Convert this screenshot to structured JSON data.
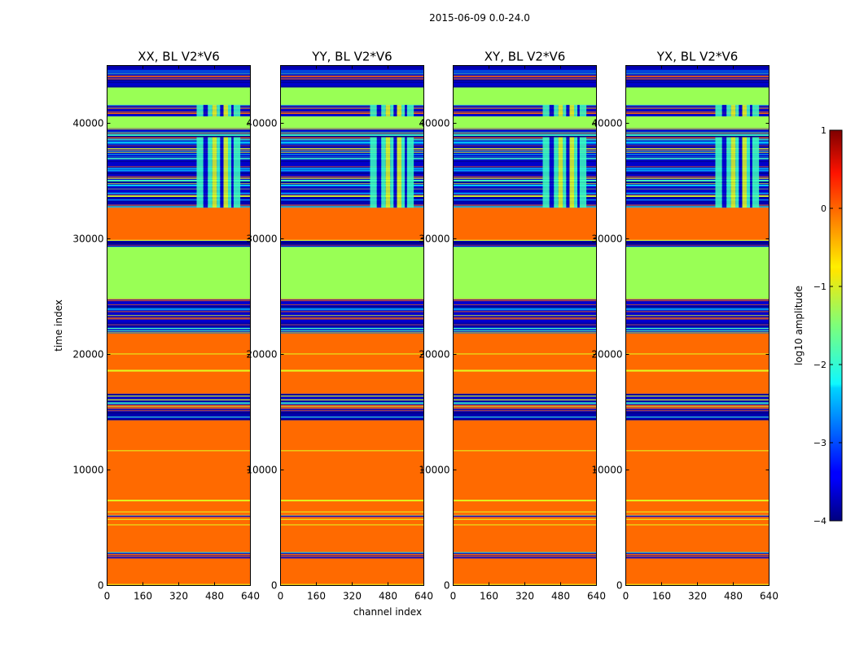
{
  "figure": {
    "suptitle": "2015-06-09 0.0-24.0",
    "xlabel": "channel index",
    "ylabel": "time index"
  },
  "colors": {
    "orange": "#ff6a00",
    "green": "#99ff55",
    "blue": "#0000cc",
    "navy": "#000080",
    "cyan": "#00e5ff",
    "yellow": "#e0ff20",
    "teal": "#3cffc0"
  },
  "chart_data": {
    "type": "heatmap",
    "panels": [
      {
        "title": "XX, BL V2*V6",
        "left_tick_labels": true
      },
      {
        "title": "YY, BL V2*V6",
        "left_tick_labels": true
      },
      {
        "title": "XY, BL V2*V6",
        "left_tick_labels": true
      },
      {
        "title": "YX, BL V2*V6",
        "left_tick_labels": true
      }
    ],
    "x_range": [
      0,
      640
    ],
    "y_range": [
      0,
      45000
    ],
    "x_ticks": [
      0,
      160,
      320,
      480,
      640
    ],
    "y_ticks": [
      0,
      10000,
      20000,
      30000,
      40000
    ],
    "bands": [
      {
        "from": 0,
        "to": 2300,
        "kind": "orange"
      },
      {
        "from": 2300,
        "to": 2900,
        "kind": "mixed"
      },
      {
        "from": 2900,
        "to": 5900,
        "kind": "orange"
      },
      {
        "from": 5900,
        "to": 6100,
        "kind": "mixed"
      },
      {
        "from": 6100,
        "to": 14300,
        "kind": "orange"
      },
      {
        "from": 14300,
        "to": 16600,
        "kind": "mixed"
      },
      {
        "from": 16600,
        "to": 21800,
        "kind": "orange"
      },
      {
        "from": 21800,
        "to": 24800,
        "kind": "mixed"
      },
      {
        "from": 24800,
        "to": 29300,
        "kind": "green"
      },
      {
        "from": 29300,
        "to": 29900,
        "kind": "mixed"
      },
      {
        "from": 29900,
        "to": 32700,
        "kind": "orange"
      },
      {
        "from": 32700,
        "to": 38800,
        "kind": "mixed_vert"
      },
      {
        "from": 38800,
        "to": 39600,
        "kind": "mixed"
      },
      {
        "from": 39600,
        "to": 40600,
        "kind": "green"
      },
      {
        "from": 40600,
        "to": 41600,
        "kind": "mixed_vert"
      },
      {
        "from": 41600,
        "to": 43100,
        "kind": "green"
      },
      {
        "from": 43100,
        "to": 45000,
        "kind": "mixed"
      }
    ],
    "colorbar": {
      "label": "log10 amplitude",
      "range": [
        -4,
        1
      ],
      "ticks": [
        -4,
        -3,
        -2,
        -1,
        0,
        1
      ],
      "tick_labels": [
        "−4",
        "−3",
        "−2",
        "−1",
        "0",
        "1"
      ],
      "colormap": "jet"
    }
  }
}
